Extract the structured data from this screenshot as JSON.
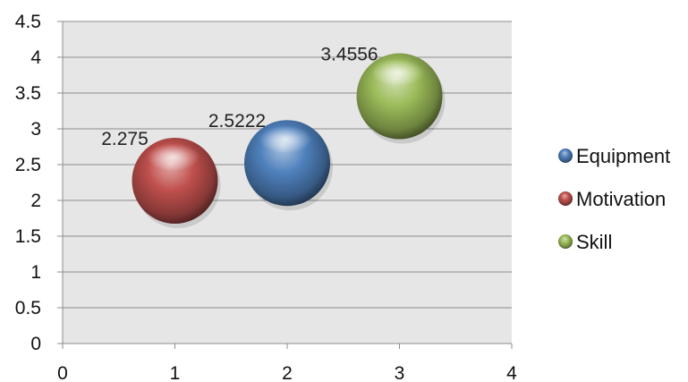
{
  "chart_data": {
    "type": "bubble",
    "title": "",
    "xlabel": "",
    "ylabel": "",
    "xlim": [
      0,
      4
    ],
    "ylim": [
      0,
      4.5
    ],
    "x_ticks": [
      "0",
      "1",
      "2",
      "3",
      "4"
    ],
    "y_ticks": [
      "0",
      "0.5",
      "1",
      "1.5",
      "2",
      "2.5",
      "3",
      "3.5",
      "4",
      "4.5"
    ],
    "grid": "horizontal",
    "legend_position": "right",
    "series": [
      {
        "name": "Motivation",
        "x": 1,
        "y": 2.275,
        "label": "2.275",
        "color": "#c0504d"
      },
      {
        "name": "Equipment",
        "x": 2,
        "y": 2.5222,
        "label": "2.5222",
        "color": "#4f81bd"
      },
      {
        "name": "Skill",
        "x": 3,
        "y": 3.4556,
        "label": "3.4556",
        "color": "#9bbb59"
      }
    ],
    "legend_order": [
      "Equipment",
      "Motivation",
      "Skill"
    ]
  }
}
